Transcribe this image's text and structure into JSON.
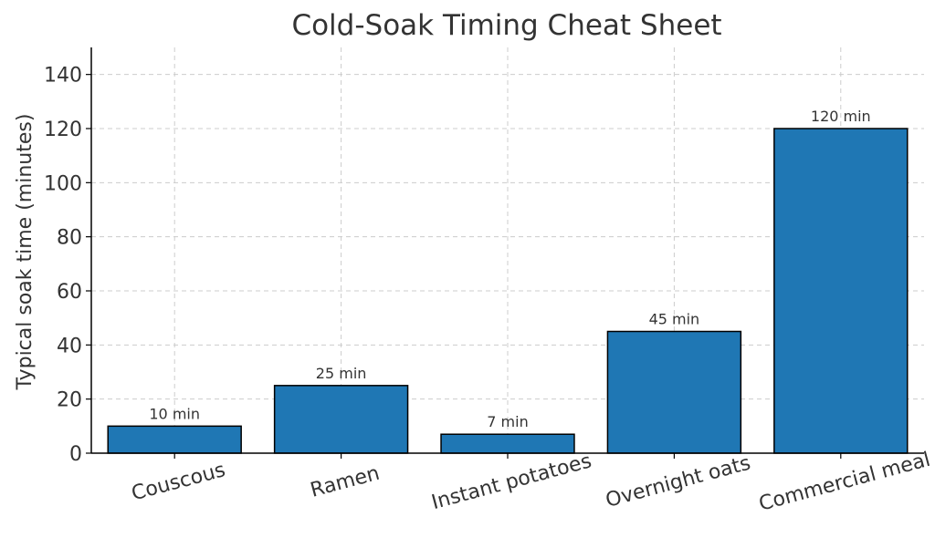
{
  "chart_data": {
    "type": "bar",
    "title": "Cold-Soak Timing Cheat Sheet",
    "xlabel": "",
    "ylabel": "Typical soak time (minutes)",
    "categories": [
      "Couscous",
      "Ramen",
      "Instant potatoes",
      "Overnight oats",
      "Commercial meal"
    ],
    "values": [
      10,
      25,
      7,
      45,
      120
    ],
    "value_labels": [
      "10 min",
      "25 min",
      "7 min",
      "45 min",
      "120 min"
    ],
    "ylim": [
      0,
      150
    ],
    "yticks": [
      0,
      20,
      40,
      60,
      80,
      100,
      120,
      140
    ],
    "grid": true,
    "bar_color": "#1f77b4",
    "bar_edge_color": "#000000",
    "grid_color": "#cccccc",
    "text_color": "#333333"
  }
}
